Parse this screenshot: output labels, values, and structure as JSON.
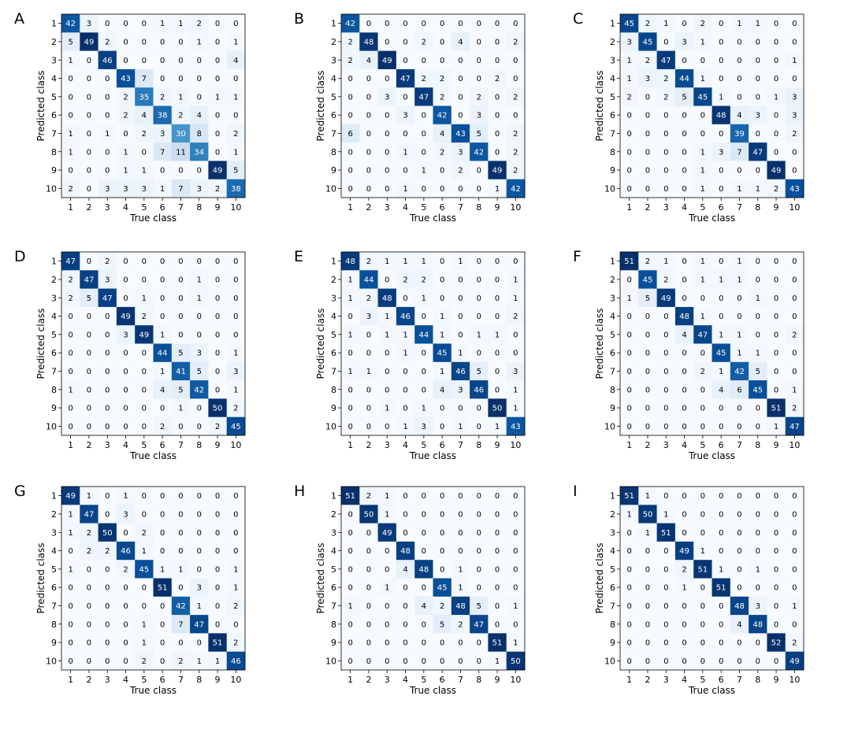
{
  "chart_data": [
    {
      "type": "heatmap",
      "panel": "A",
      "xlabel": "True class",
      "ylabel": "Predicted class",
      "x_categories": [
        "1",
        "2",
        "3",
        "4",
        "5",
        "6",
        "7",
        "8",
        "9",
        "10"
      ],
      "y_categories": [
        "1",
        "2",
        "3",
        "4",
        "5",
        "6",
        "7",
        "8",
        "9",
        "10"
      ],
      "matrix": [
        [
          42,
          3,
          0,
          0,
          0,
          1,
          1,
          2,
          0,
          0
        ],
        [
          5,
          49,
          2,
          0,
          0,
          0,
          0,
          1,
          0,
          1
        ],
        [
          1,
          0,
          46,
          0,
          0,
          0,
          0,
          0,
          0,
          4
        ],
        [
          0,
          0,
          0,
          43,
          7,
          0,
          0,
          0,
          0,
          0
        ],
        [
          0,
          0,
          0,
          2,
          35,
          2,
          1,
          0,
          1,
          1
        ],
        [
          0,
          0,
          0,
          2,
          4,
          38,
          2,
          4,
          0,
          0
        ],
        [
          1,
          0,
          1,
          0,
          2,
          3,
          30,
          8,
          0,
          2
        ],
        [
          1,
          0,
          0,
          1,
          0,
          7,
          11,
          34,
          0,
          1
        ],
        [
          0,
          0,
          0,
          1,
          1,
          0,
          0,
          0,
          49,
          5
        ],
        [
          2,
          0,
          3,
          3,
          3,
          1,
          7,
          3,
          2,
          38
        ]
      ]
    },
    {
      "type": "heatmap",
      "panel": "B",
      "xlabel": "True class",
      "ylabel": "Predicted class",
      "x_categories": [
        "1",
        "2",
        "3",
        "4",
        "5",
        "6",
        "7",
        "8",
        "9",
        "10"
      ],
      "y_categories": [
        "1",
        "2",
        "3",
        "4",
        "5",
        "6",
        "7",
        "8",
        "9",
        "10"
      ],
      "matrix": [
        [
          42,
          0,
          0,
          0,
          0,
          0,
          0,
          0,
          0,
          0
        ],
        [
          2,
          48,
          0,
          0,
          2,
          0,
          4,
          0,
          0,
          2
        ],
        [
          2,
          4,
          49,
          0,
          0,
          0,
          0,
          0,
          0,
          0
        ],
        [
          0,
          0,
          0,
          47,
          2,
          2,
          0,
          0,
          2,
          0
        ],
        [
          0,
          0,
          3,
          0,
          47,
          2,
          0,
          2,
          0,
          2
        ],
        [
          0,
          0,
          0,
          3,
          0,
          42,
          0,
          3,
          0,
          0
        ],
        [
          6,
          0,
          0,
          0,
          0,
          4,
          43,
          5,
          0,
          2
        ],
        [
          0,
          0,
          0,
          1,
          0,
          2,
          3,
          42,
          0,
          2
        ],
        [
          0,
          0,
          0,
          0,
          1,
          0,
          2,
          0,
          49,
          2
        ],
        [
          0,
          0,
          0,
          1,
          0,
          0,
          0,
          0,
          1,
          42
        ]
      ]
    },
    {
      "type": "heatmap",
      "panel": "C",
      "xlabel": "True class",
      "ylabel": "Predicted class",
      "x_categories": [
        "1",
        "2",
        "3",
        "4",
        "5",
        "6",
        "7",
        "8",
        "9",
        "10"
      ],
      "y_categories": [
        "1",
        "2",
        "3",
        "4",
        "5",
        "6",
        "7",
        "8",
        "9",
        "10"
      ],
      "matrix": [
        [
          45,
          2,
          1,
          0,
          2,
          0,
          1,
          1,
          0,
          0
        ],
        [
          3,
          45,
          0,
          3,
          1,
          0,
          0,
          0,
          0,
          0
        ],
        [
          1,
          2,
          47,
          0,
          0,
          0,
          0,
          0,
          0,
          1
        ],
        [
          1,
          3,
          2,
          44,
          1,
          0,
          0,
          0,
          0,
          0
        ],
        [
          2,
          0,
          2,
          5,
          45,
          1,
          0,
          0,
          1,
          3
        ],
        [
          0,
          0,
          0,
          0,
          0,
          48,
          4,
          3,
          0,
          3
        ],
        [
          0,
          0,
          0,
          0,
          0,
          0,
          39,
          0,
          0,
          2
        ],
        [
          0,
          0,
          0,
          0,
          1,
          3,
          7,
          47,
          0,
          0
        ],
        [
          0,
          0,
          0,
          0,
          1,
          0,
          0,
          0,
          49,
          0
        ],
        [
          0,
          0,
          0,
          0,
          1,
          0,
          1,
          1,
          2,
          43
        ]
      ]
    },
    {
      "type": "heatmap",
      "panel": "D",
      "xlabel": "True class",
      "ylabel": "Predicted class",
      "x_categories": [
        "1",
        "2",
        "3",
        "4",
        "5",
        "6",
        "7",
        "8",
        "9",
        "10"
      ],
      "y_categories": [
        "1",
        "2",
        "3",
        "4",
        "5",
        "6",
        "7",
        "8",
        "9",
        "10"
      ],
      "matrix": [
        [
          47,
          0,
          2,
          0,
          0,
          0,
          0,
          0,
          0,
          0
        ],
        [
          2,
          47,
          3,
          0,
          0,
          0,
          0,
          1,
          0,
          0
        ],
        [
          2,
          5,
          47,
          0,
          1,
          0,
          0,
          1,
          0,
          0
        ],
        [
          0,
          0,
          0,
          49,
          2,
          0,
          0,
          0,
          0,
          0
        ],
        [
          0,
          0,
          0,
          3,
          49,
          1,
          0,
          0,
          0,
          0
        ],
        [
          0,
          0,
          0,
          0,
          0,
          44,
          5,
          3,
          0,
          1
        ],
        [
          0,
          0,
          0,
          0,
          0,
          1,
          41,
          5,
          0,
          3
        ],
        [
          1,
          0,
          0,
          0,
          0,
          4,
          5,
          42,
          0,
          1
        ],
        [
          0,
          0,
          0,
          0,
          0,
          0,
          1,
          0,
          50,
          2
        ],
        [
          0,
          0,
          0,
          0,
          0,
          2,
          0,
          0,
          2,
          45
        ]
      ]
    },
    {
      "type": "heatmap",
      "panel": "E",
      "xlabel": "True class",
      "ylabel": "Predicted class",
      "x_categories": [
        "1",
        "2",
        "3",
        "4",
        "5",
        "6",
        "7",
        "8",
        "9",
        "10"
      ],
      "y_categories": [
        "1",
        "2",
        "3",
        "4",
        "5",
        "6",
        "7",
        "8",
        "9",
        "10"
      ],
      "matrix": [
        [
          48,
          2,
          1,
          1,
          1,
          0,
          1,
          0,
          0,
          0
        ],
        [
          1,
          44,
          0,
          2,
          2,
          0,
          0,
          0,
          0,
          1
        ],
        [
          1,
          2,
          48,
          0,
          1,
          0,
          0,
          0,
          0,
          1
        ],
        [
          0,
          3,
          1,
          46,
          0,
          1,
          0,
          0,
          0,
          2
        ],
        [
          1,
          0,
          1,
          1,
          44,
          1,
          0,
          1,
          1,
          0
        ],
        [
          0,
          0,
          0,
          1,
          0,
          45,
          1,
          0,
          0,
          0
        ],
        [
          1,
          1,
          0,
          0,
          0,
          1,
          46,
          5,
          0,
          3
        ],
        [
          0,
          0,
          0,
          0,
          0,
          4,
          3,
          46,
          0,
          1
        ],
        [
          0,
          0,
          1,
          0,
          1,
          0,
          0,
          0,
          50,
          1
        ],
        [
          0,
          0,
          0,
          1,
          3,
          0,
          1,
          0,
          1,
          43
        ]
      ]
    },
    {
      "type": "heatmap",
      "panel": "F",
      "xlabel": "True class",
      "ylabel": "Predicted class",
      "x_categories": [
        "1",
        "2",
        "3",
        "4",
        "5",
        "6",
        "7",
        "8",
        "9",
        "10"
      ],
      "y_categories": [
        "1",
        "2",
        "3",
        "4",
        "5",
        "6",
        "7",
        "8",
        "9",
        "10"
      ],
      "matrix": [
        [
          51,
          2,
          1,
          0,
          1,
          0,
          1,
          0,
          0,
          0
        ],
        [
          0,
          45,
          2,
          0,
          1,
          1,
          1,
          0,
          0,
          0
        ],
        [
          1,
          5,
          49,
          0,
          0,
          0,
          0,
          1,
          0,
          0
        ],
        [
          0,
          0,
          0,
          48,
          1,
          0,
          0,
          0,
          0,
          0
        ],
        [
          0,
          0,
          0,
          4,
          47,
          1,
          1,
          0,
          0,
          2
        ],
        [
          0,
          0,
          0,
          0,
          0,
          45,
          1,
          1,
          0,
          0
        ],
        [
          0,
          0,
          0,
          0,
          2,
          1,
          42,
          5,
          0,
          0
        ],
        [
          0,
          0,
          0,
          0,
          0,
          4,
          6,
          45,
          0,
          1
        ],
        [
          0,
          0,
          0,
          0,
          0,
          0,
          0,
          0,
          51,
          2
        ],
        [
          0,
          0,
          0,
          0,
          0,
          0,
          0,
          0,
          1,
          47
        ]
      ]
    },
    {
      "type": "heatmap",
      "panel": "G",
      "xlabel": "True class",
      "ylabel": "Predicted class",
      "x_categories": [
        "1",
        "2",
        "3",
        "4",
        "5",
        "6",
        "7",
        "8",
        "9",
        "10"
      ],
      "y_categories": [
        "1",
        "2",
        "3",
        "4",
        "5",
        "6",
        "7",
        "8",
        "9",
        "10"
      ],
      "matrix": [
        [
          49,
          1,
          0,
          1,
          0,
          0,
          0,
          0,
          0,
          0
        ],
        [
          1,
          47,
          0,
          3,
          0,
          0,
          0,
          0,
          0,
          0
        ],
        [
          1,
          2,
          50,
          0,
          2,
          0,
          0,
          0,
          0,
          0
        ],
        [
          0,
          2,
          2,
          46,
          1,
          0,
          0,
          0,
          0,
          0
        ],
        [
          1,
          0,
          0,
          2,
          45,
          1,
          1,
          0,
          0,
          1
        ],
        [
          0,
          0,
          0,
          0,
          0,
          51,
          0,
          3,
          0,
          1
        ],
        [
          0,
          0,
          0,
          0,
          0,
          0,
          42,
          1,
          0,
          2
        ],
        [
          0,
          0,
          0,
          0,
          1,
          0,
          7,
          47,
          0,
          0
        ],
        [
          0,
          0,
          0,
          0,
          1,
          0,
          0,
          0,
          51,
          2
        ],
        [
          0,
          0,
          0,
          0,
          2,
          0,
          2,
          1,
          1,
          46
        ]
      ]
    },
    {
      "type": "heatmap",
      "panel": "H",
      "xlabel": "True class",
      "ylabel": "Predicted class",
      "x_categories": [
        "1",
        "2",
        "3",
        "4",
        "5",
        "6",
        "7",
        "8",
        "9",
        "10"
      ],
      "y_categories": [
        "1",
        "2",
        "3",
        "4",
        "5",
        "6",
        "7",
        "8",
        "9",
        "10"
      ],
      "matrix": [
        [
          51,
          2,
          1,
          0,
          0,
          0,
          0,
          0,
          0,
          0
        ],
        [
          0,
          50,
          1,
          0,
          0,
          0,
          0,
          0,
          0,
          0
        ],
        [
          0,
          0,
          49,
          0,
          0,
          0,
          0,
          0,
          0,
          0
        ],
        [
          0,
          0,
          0,
          48,
          0,
          0,
          0,
          0,
          0,
          0
        ],
        [
          0,
          0,
          0,
          4,
          48,
          0,
          1,
          0,
          0,
          0
        ],
        [
          0,
          0,
          1,
          0,
          0,
          45,
          1,
          0,
          0,
          0
        ],
        [
          1,
          0,
          0,
          0,
          4,
          2,
          48,
          5,
          0,
          1
        ],
        [
          0,
          0,
          0,
          0,
          0,
          5,
          2,
          47,
          0,
          0
        ],
        [
          0,
          0,
          0,
          0,
          0,
          0,
          0,
          0,
          51,
          1
        ],
        [
          0,
          0,
          0,
          0,
          0,
          0,
          0,
          0,
          1,
          50
        ]
      ]
    },
    {
      "type": "heatmap",
      "panel": "I",
      "xlabel": "True class",
      "ylabel": "Predicted class",
      "x_categories": [
        "1",
        "2",
        "3",
        "4",
        "5",
        "6",
        "7",
        "8",
        "9",
        "10"
      ],
      "y_categories": [
        "1",
        "2",
        "3",
        "4",
        "5",
        "6",
        "7",
        "8",
        "9",
        "10"
      ],
      "matrix": [
        [
          51,
          1,
          0,
          0,
          0,
          0,
          0,
          0,
          0,
          0
        ],
        [
          1,
          50,
          1,
          0,
          0,
          0,
          0,
          0,
          0,
          0
        ],
        [
          0,
          1,
          51,
          0,
          0,
          0,
          0,
          0,
          0,
          0
        ],
        [
          0,
          0,
          0,
          49,
          1,
          0,
          0,
          0,
          0,
          0
        ],
        [
          0,
          0,
          0,
          2,
          51,
          1,
          0,
          1,
          0,
          0
        ],
        [
          0,
          0,
          0,
          1,
          0,
          51,
          0,
          0,
          0,
          0
        ],
        [
          0,
          0,
          0,
          0,
          0,
          0,
          48,
          3,
          0,
          1
        ],
        [
          0,
          0,
          0,
          0,
          0,
          0,
          4,
          48,
          0,
          0
        ],
        [
          0,
          0,
          0,
          0,
          0,
          0,
          0,
          0,
          52,
          2
        ],
        [
          0,
          0,
          0,
          0,
          0,
          0,
          0,
          0,
          0,
          49
        ]
      ]
    }
  ],
  "colormap": {
    "name": "Blues",
    "low": "#f7fbff",
    "high": "#08306b"
  }
}
